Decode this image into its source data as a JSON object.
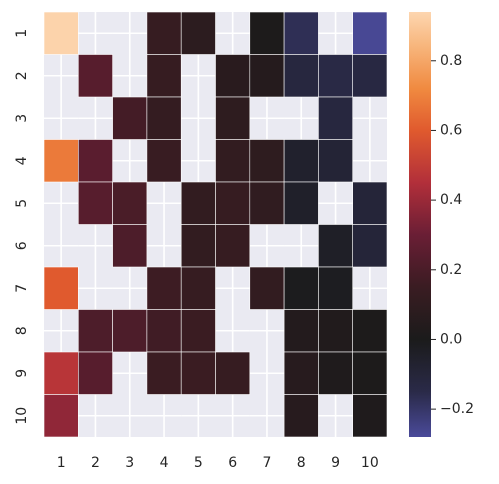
{
  "chart_data": {
    "type": "heatmap",
    "x_categories": [
      "1",
      "2",
      "3",
      "4",
      "5",
      "6",
      "7",
      "8",
      "9",
      "10"
    ],
    "y_categories": [
      "1",
      "2",
      "3",
      "4",
      "5",
      "6",
      "7",
      "8",
      "9",
      "10"
    ],
    "values": [
      [
        0.93,
        null,
        null,
        0.13,
        0.08,
        null,
        0.01,
        -0.17,
        null,
        -0.27
      ],
      [
        null,
        0.24,
        null,
        0.13,
        null,
        0.07,
        0.05,
        -0.12,
        -0.14,
        -0.13
      ],
      [
        null,
        null,
        0.18,
        0.12,
        null,
        0.09,
        null,
        null,
        -0.12,
        null
      ],
      [
        0.68,
        0.25,
        null,
        0.14,
        null,
        0.11,
        0.09,
        -0.06,
        -0.09,
        null
      ],
      [
        null,
        0.24,
        0.2,
        null,
        0.11,
        0.13,
        0.1,
        -0.05,
        null,
        -0.1
      ],
      [
        null,
        null,
        0.21,
        null,
        0.11,
        0.13,
        null,
        null,
        -0.04,
        -0.1
      ],
      [
        0.6,
        null,
        null,
        0.16,
        0.13,
        null,
        0.11,
        -0.01,
        -0.02,
        null
      ],
      [
        null,
        0.21,
        0.21,
        0.17,
        0.15,
        null,
        null,
        0.04,
        0.03,
        0.01
      ],
      [
        0.47,
        0.24,
        null,
        0.15,
        0.15,
        0.13,
        null,
        0.06,
        0.02,
        0.01
      ],
      [
        0.38,
        null,
        null,
        null,
        null,
        null,
        null,
        0.06,
        null,
        0.02
      ]
    ],
    "colorbar": {
      "min": -0.28,
      "max": 0.94,
      "ticks": [
        -0.2,
        0.0,
        0.2,
        0.4,
        0.6,
        0.8
      ],
      "tick_labels": [
        "−0.2",
        "0.0",
        "0.2",
        "0.4",
        "0.6",
        "0.8"
      ],
      "colormap": "icefire-like",
      "stops": [
        {
          "v": -0.28,
          "c": "#4a4a9a"
        },
        {
          "v": -0.15,
          "c": "#2a2a48"
        },
        {
          "v": 0.0,
          "c": "#1b1b1b"
        },
        {
          "v": 0.15,
          "c": "#3a1c22"
        },
        {
          "v": 0.3,
          "c": "#6a1e35"
        },
        {
          "v": 0.45,
          "c": "#b22f3a"
        },
        {
          "v": 0.6,
          "c": "#e05a2e"
        },
        {
          "v": 0.72,
          "c": "#f08a40"
        },
        {
          "v": 0.85,
          "c": "#f8b880"
        },
        {
          "v": 0.94,
          "c": "#fdd6b0"
        }
      ]
    },
    "background_color": "#eaeaf2",
    "grid": true
  }
}
